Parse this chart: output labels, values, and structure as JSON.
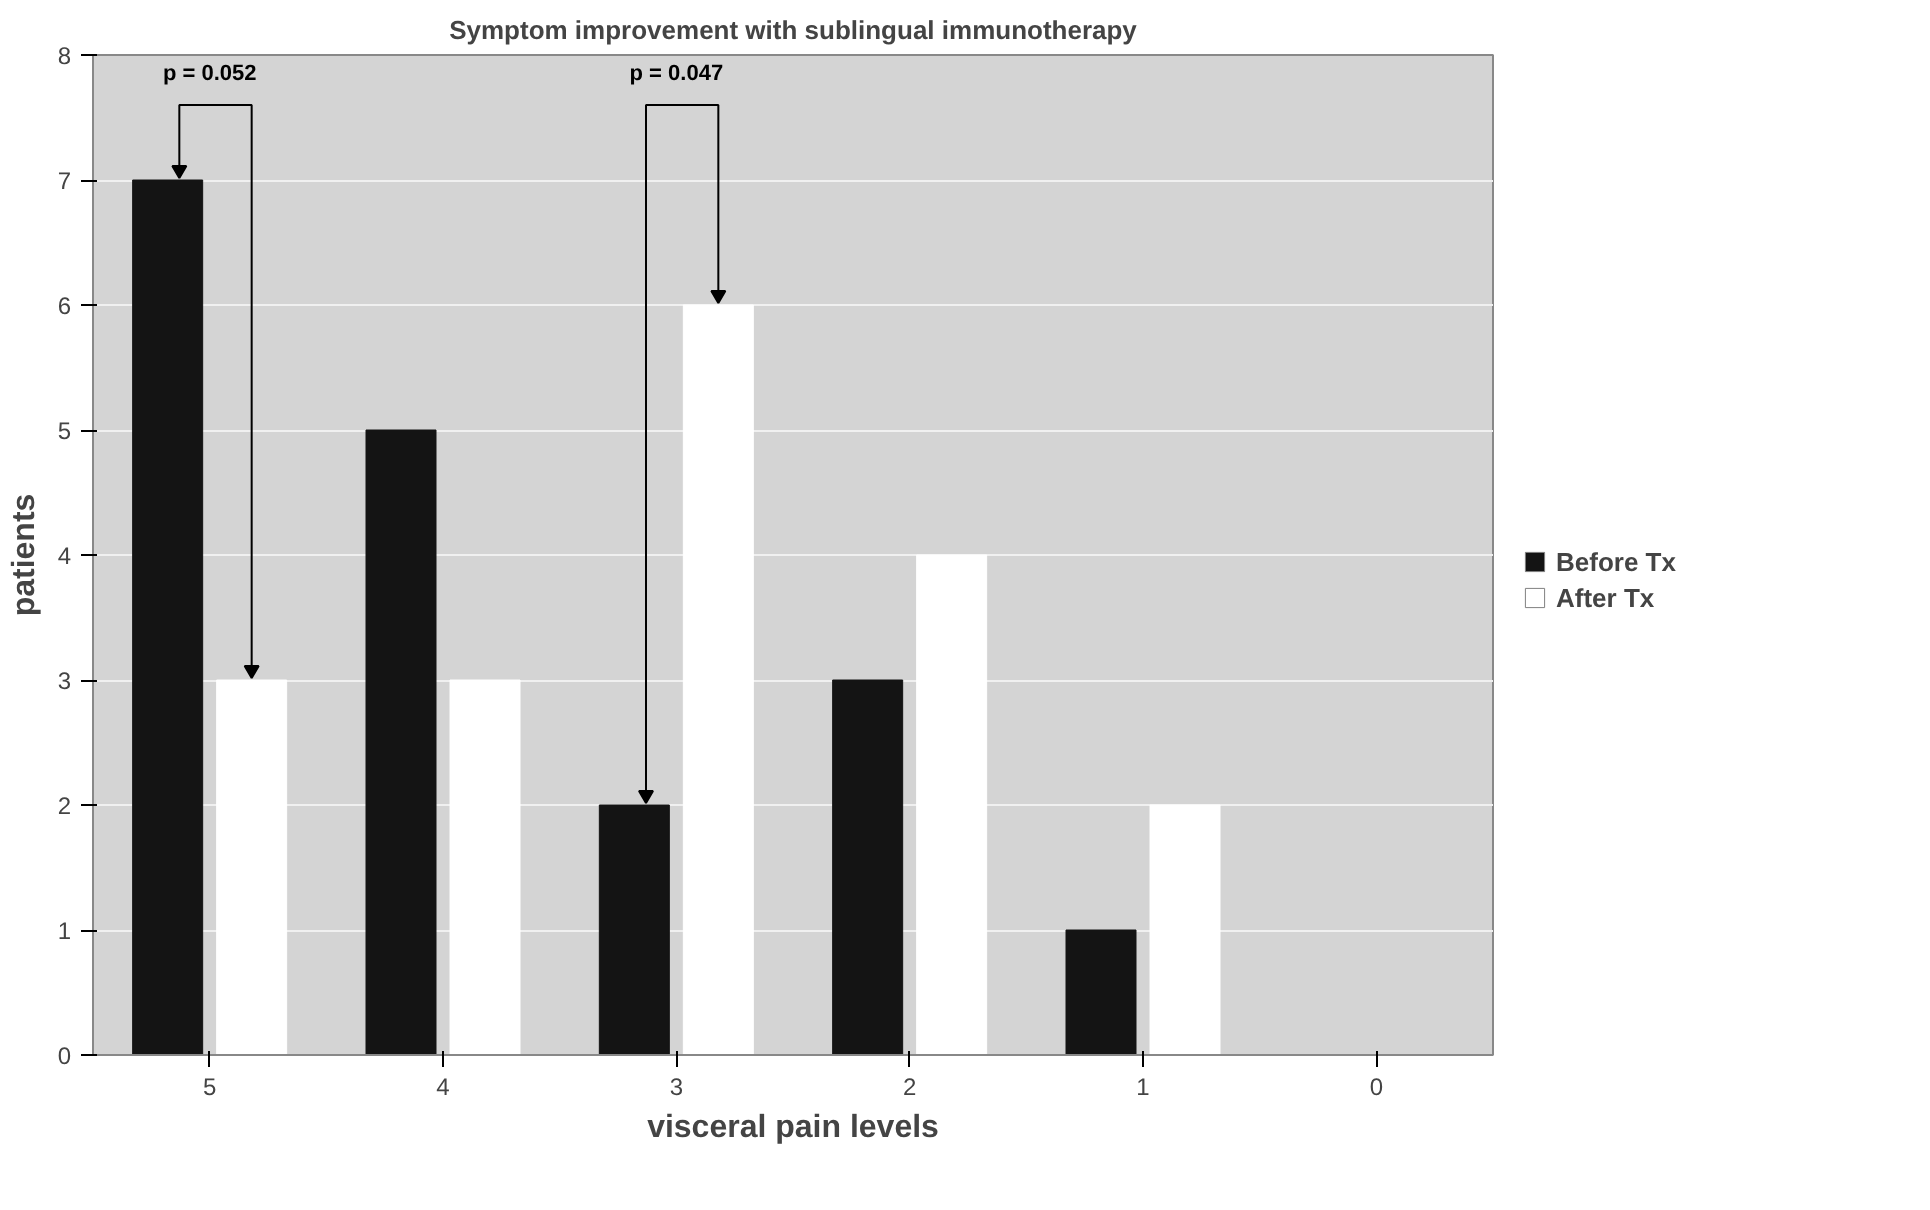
{
  "chart_data": {
    "type": "bar",
    "title": "Symptom improvement with sublingual immunotherapy",
    "xlabel": "visceral pain levels",
    "ylabel": "patients",
    "categories": [
      "5",
      "4",
      "3",
      "2",
      "1",
      "0"
    ],
    "series": [
      {
        "name": "Before Tx",
        "color": "#141414",
        "values": [
          7,
          5,
          2,
          3,
          1,
          0
        ]
      },
      {
        "name": "After Tx",
        "color": "#ffffff",
        "values": [
          3,
          3,
          6,
          4,
          2,
          0
        ]
      }
    ],
    "ylim": [
      0,
      8
    ],
    "yticks": [
      0,
      1,
      2,
      3,
      4,
      5,
      6,
      7,
      8
    ],
    "grid": "y",
    "legend": "right",
    "annotations": [
      "p = 0.052",
      "p = 0.047"
    ]
  }
}
